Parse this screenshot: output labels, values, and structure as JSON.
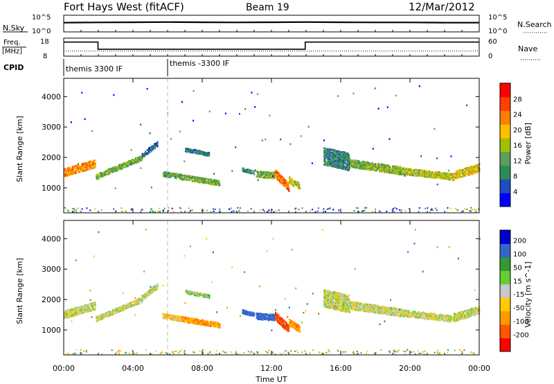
{
  "header": {
    "station": "Fort Hays West (fitACF)",
    "beam": "Beam 19",
    "date": "12/Mar/2012"
  },
  "noise_panel": {
    "left_label": "N.Sky",
    "right_label": "N.Search",
    "left_ticks": [
      "10^5",
      "10^0"
    ],
    "right_ticks": [
      "10^5",
      "10^0"
    ]
  },
  "freq_panel": {
    "left_label_1": "Freq.",
    "left_label_2": "[MHz]",
    "right_label": "Nave",
    "left_ticks": [
      "18",
      "8"
    ],
    "right_ticks": [
      "60",
      "0"
    ]
  },
  "cpid": {
    "label": "CPID",
    "programs": [
      {
        "name": "themis 3300 IF",
        "start_hour": 0
      },
      {
        "name": "themis -3300 IF",
        "start_hour": 6
      }
    ]
  },
  "colors": {
    "power": [
      "#0000ff",
      "#1f4fbf",
      "#2e8b57",
      "#5c9e5c",
      "#a0c000",
      "#ffc000",
      "#ff8000",
      "#ff4000",
      "#ff0000"
    ],
    "velocity": [
      "#ff0000",
      "#ff5500",
      "#ff9900",
      "#ffcc00",
      "#c8c8c8",
      "#66cc33",
      "#339933",
      "#3366cc",
      "#0000cc"
    ],
    "ground_scatter": "#bebebe"
  },
  "chart_data": [
    {
      "type": "line",
      "name": "noise",
      "x_unit": "hours UT",
      "series": [
        {
          "name": "N.Sky",
          "x": [
            0,
            2,
            4,
            6,
            8,
            10,
            12,
            14,
            16,
            18,
            20,
            22,
            24
          ],
          "y": [
            600,
            700,
            800,
            900,
            800,
            700,
            800,
            900,
            800,
            700,
            700,
            600,
            600
          ]
        }
      ],
      "ylim": [
        1,
        100000
      ],
      "yscale": "log"
    },
    {
      "type": "line",
      "name": "frequency",
      "x_unit": "hours UT",
      "series": [
        {
          "name": "Freq.",
          "x": [
            0,
            1.98,
            1.98,
            13.95,
            13.95,
            24
          ],
          "y": [
            15.8,
            15.8,
            11.8,
            11.8,
            15.8,
            15.8
          ]
        },
        {
          "name": "Nave",
          "x": [
            0,
            24
          ],
          "y": [
            17,
            17
          ]
        }
      ],
      "ylim": [
        8,
        18
      ],
      "y2lim": [
        0,
        60
      ]
    },
    {
      "type": "heatmap",
      "name": "power",
      "xlabel": "",
      "ylabel": "Slant Range [km]",
      "colorbar_label": "Power [dB]",
      "colorbar_ticks": [
        "28",
        "24",
        "20",
        "16",
        "12",
        "8",
        "4"
      ],
      "clim": [
        0,
        32
      ],
      "xlim": [
        0,
        24
      ],
      "ylim": [
        180,
        4600
      ],
      "yticks": [
        "4000",
        "3000",
        "2000",
        "1000"
      ],
      "ytick_values": [
        4000,
        3000,
        2000,
        1000
      ],
      "echo_regions": [
        {
          "t": [
            0.0,
            1.8
          ],
          "r0": 1550,
          "r1": 1850,
          "w": 280,
          "p": 22
        },
        {
          "t": [
            1.85,
            4.5
          ],
          "r0": 1420,
          "r1": 2050,
          "w": 200,
          "p": 13
        },
        {
          "t": [
            4.5,
            5.4
          ],
          "r0": 2100,
          "r1": 2500,
          "w": 180,
          "p": 7
        },
        {
          "t": [
            5.7,
            6.8
          ],
          "r0": 1500,
          "r1": 1400,
          "w": 170,
          "p": 12
        },
        {
          "t": [
            6.8,
            9.0
          ],
          "r0": 1400,
          "r1": 1200,
          "w": 180,
          "p": 13
        },
        {
          "t": [
            7.0,
            8.4
          ],
          "r0": 2300,
          "r1": 2150,
          "w": 140,
          "p": 8
        },
        {
          "t": [
            10.3,
            11.0
          ],
          "r0": 1650,
          "r1": 1550,
          "w": 140,
          "p": 9
        },
        {
          "t": [
            11.1,
            12.2
          ],
          "r0": 1500,
          "r1": 1450,
          "w": 220,
          "p": 14
        },
        {
          "t": [
            12.2,
            13.0
          ],
          "r0": 1500,
          "r1": 1050,
          "w": 260,
          "p": 24
        },
        {
          "t": [
            13.0,
            13.6
          ],
          "r0": 1300,
          "r1": 1100,
          "w": 240,
          "p": 16
        },
        {
          "t": [
            15.0,
            16.5
          ],
          "r0": 2100,
          "r1": 1900,
          "w": 600,
          "p": 9
        },
        {
          "t": [
            16.5,
            19.5
          ],
          "r0": 1850,
          "r1": 1600,
          "w": 260,
          "p": 14
        },
        {
          "t": [
            19.5,
            22.5
          ],
          "r0": 1600,
          "r1": 1400,
          "w": 220,
          "p": 16
        },
        {
          "t": [
            22.5,
            24.0
          ],
          "r0": 1450,
          "r1": 1700,
          "w": 260,
          "p": 18
        }
      ]
    },
    {
      "type": "heatmap",
      "name": "velocity",
      "xlabel": "Time UT",
      "ylabel": "Slant Range [km]",
      "colorbar_label": "Velocity [m s^-1]",
      "colorbar_ticks": [
        "200",
        "100",
        "50",
        "15",
        "-15",
        "-50",
        "-100",
        "-200"
      ],
      "clim": [
        -250,
        250
      ],
      "xlim": [
        0,
        24
      ],
      "ylim": [
        180,
        4600
      ],
      "xticks": [
        "00:00",
        "04:00",
        "08:00",
        "12:00",
        "16:00",
        "20:00",
        "00:00"
      ],
      "xtick_values": [
        0,
        4,
        8,
        12,
        16,
        20,
        24
      ],
      "yticks": [
        "4000",
        "3000",
        "2000",
        "1000"
      ],
      "ytick_values": [
        4000,
        3000,
        2000,
        1000
      ],
      "echo_regions": [
        {
          "t": [
            0.0,
            1.8
          ],
          "r0": 1550,
          "r1": 1850,
          "w": 280,
          "v": 0
        },
        {
          "t": [
            1.85,
            4.5
          ],
          "r0": 1420,
          "r1": 2050,
          "w": 200,
          "v": 0
        },
        {
          "t": [
            4.5,
            5.4
          ],
          "r0": 2100,
          "r1": 2500,
          "w": 180,
          "v": 0
        },
        {
          "t": [
            5.7,
            6.8
          ],
          "r0": 1500,
          "r1": 1400,
          "w": 170,
          "v": -30
        },
        {
          "t": [
            6.8,
            9.0
          ],
          "r0": 1400,
          "r1": 1200,
          "w": 180,
          "v": -70
        },
        {
          "t": [
            7.0,
            8.4
          ],
          "r0": 2300,
          "r1": 2150,
          "w": 140,
          "v": 20
        },
        {
          "t": [
            10.3,
            11.0
          ],
          "r0": 1650,
          "r1": 1550,
          "w": 140,
          "v": 150
        },
        {
          "t": [
            11.1,
            12.2
          ],
          "r0": 1500,
          "r1": 1450,
          "w": 220,
          "v": 150
        },
        {
          "t": [
            12.2,
            13.0
          ],
          "r0": 1500,
          "r1": 1050,
          "w": 260,
          "v": -180
        },
        {
          "t": [
            13.0,
            13.6
          ],
          "r0": 1300,
          "r1": 1100,
          "w": 240,
          "v": -80
        },
        {
          "t": [
            15.0,
            16.5
          ],
          "r0": 2100,
          "r1": 1900,
          "w": 600,
          "v": 0
        },
        {
          "t": [
            16.5,
            19.5
          ],
          "r0": 1850,
          "r1": 1600,
          "w": 260,
          "v": 0
        },
        {
          "t": [
            19.5,
            22.5
          ],
          "r0": 1600,
          "r1": 1400,
          "w": 220,
          "v": 0
        },
        {
          "t": [
            22.5,
            24.0
          ],
          "r0": 1450,
          "r1": 1700,
          "w": 260,
          "v": 0
        }
      ]
    }
  ]
}
